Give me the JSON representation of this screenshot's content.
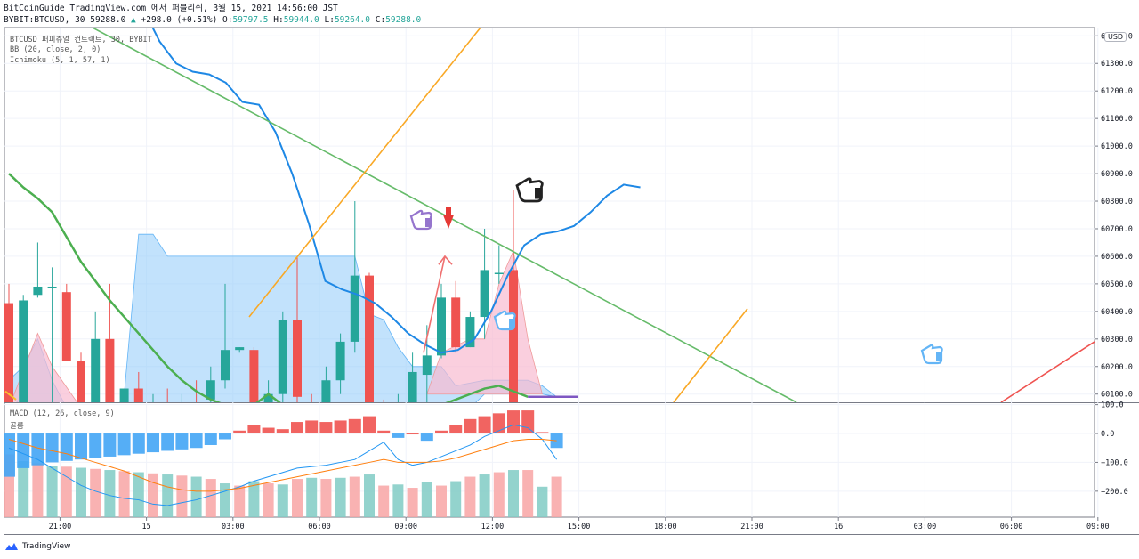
{
  "header": {
    "line1": "BitCoinGuide TradingView.com 에서 퍼블리쉬, 3월 15, 2021 14:56:00 JST",
    "symbol": "BYBIT:BTCUSD, 30",
    "last": "59288.0",
    "change": "+298.0 (+0.51%)",
    "o_label": "O:",
    "o": "59797.5",
    "h_label": "H:",
    "h": "59944.0",
    "l_label": "L:",
    "l": "59264.0",
    "c_label": "C:",
    "c": "59288.0"
  },
  "legend": {
    "main": "BTCUSD 퍼피츄얼 컨트랙트, 30, BYBIT",
    "bb": "BB (20, close, 2, 0)",
    "ichimoku": "Ichimoku (5, 1, 57, 1)",
    "macd": "MACD (12, 26, close, 9)",
    "macd_sub": "골롬"
  },
  "currency": "USD",
  "brand": "TradingView",
  "colors": {
    "up": "#26a69a",
    "down": "#ef5350",
    "cloud": "#90caf9",
    "bb": "#1e88e5",
    "trend_green": "#66bb6a",
    "trend_orange": "#f9a825",
    "macd_line": "#2196f3",
    "signal_line": "#ff7f0e"
  },
  "chart_data": [
    {
      "type": "candlestick",
      "y_ticks": [
        60100,
        60200,
        60300,
        60400,
        60500,
        60600,
        60700,
        60800,
        60900,
        61000,
        61100,
        61200,
        61300,
        61400
      ],
      "y_tick_labels": [
        "60100.0",
        "60200.0",
        "60300.0",
        "60400.0",
        "60500.0",
        "60600.0",
        "60700.0",
        "60800.0",
        "60900.0",
        "61000.0",
        "61100.0",
        "61200.0",
        "61300.0",
        "61400.0"
      ],
      "ylim": [
        60070,
        61430
      ],
      "x_tick_labels": [
        "21:00",
        "15",
        "03:00",
        "06:00",
        "09:00",
        "12:00",
        "15:00",
        "18:00",
        "21:00",
        "16",
        "03:00",
        "06:00",
        "09:00"
      ],
      "x_tick_index": [
        2,
        8,
        14,
        20,
        26,
        32,
        38,
        44,
        50,
        56,
        62,
        68,
        74
      ],
      "candles": [
        {
          "o": 60430,
          "h": 60500,
          "l": 60050,
          "c": 60050
        },
        {
          "o": 60050,
          "h": 60460,
          "l": 60020,
          "c": 60440
        },
        {
          "o": 60460,
          "h": 60650,
          "l": 60450,
          "c": 60490
        },
        {
          "o": 60490,
          "h": 60560,
          "l": 60050,
          "c": 60490
        },
        {
          "o": 60470,
          "h": 60500,
          "l": 60220,
          "c": 60220
        },
        {
          "o": 60220,
          "h": 60250,
          "l": 59950,
          "c": 60000
        },
        {
          "o": 60050,
          "h": 60400,
          "l": 60040,
          "c": 60300
        },
        {
          "o": 60300,
          "h": 60500,
          "l": 60000,
          "c": 60000
        },
        {
          "o": 60000,
          "h": 60120,
          "l": 59900,
          "c": 60120
        },
        {
          "o": 60120,
          "h": 60180,
          "l": 59950,
          "c": 60040
        },
        {
          "o": 60040,
          "h": 60100,
          "l": 59980,
          "c": 60050
        },
        {
          "o": 60050,
          "h": 60120,
          "l": 59980,
          "c": 60010
        },
        {
          "o": 60010,
          "h": 60100,
          "l": 59950,
          "c": 60060
        },
        {
          "o": 60060,
          "h": 60150,
          "l": 59980,
          "c": 60040
        },
        {
          "o": 60080,
          "h": 60200,
          "l": 60050,
          "c": 60150
        },
        {
          "o": 60150,
          "h": 60500,
          "l": 60120,
          "c": 60260
        },
        {
          "o": 60260,
          "h": 60270,
          "l": 60250,
          "c": 60270
        },
        {
          "o": 60260,
          "h": 60270,
          "l": 60000,
          "c": 60010
        },
        {
          "o": 60050,
          "h": 60150,
          "l": 59990,
          "c": 60100
        },
        {
          "o": 60100,
          "h": 60400,
          "l": 60050,
          "c": 60370
        },
        {
          "o": 60370,
          "h": 60600,
          "l": 60050,
          "c": 60090
        },
        {
          "o": 60050,
          "h": 60100,
          "l": 59950,
          "c": 60000
        },
        {
          "o": 60020,
          "h": 60200,
          "l": 60000,
          "c": 60150
        },
        {
          "o": 60150,
          "h": 60320,
          "l": 60100,
          "c": 60290
        },
        {
          "o": 60290,
          "h": 60800,
          "l": 60250,
          "c": 60530
        },
        {
          "o": 60530,
          "h": 60540,
          "l": 60060,
          "c": 60060
        },
        {
          "o": 60050,
          "h": 60080,
          "l": 59950,
          "c": 60000
        },
        {
          "o": 60020,
          "h": 60100,
          "l": 59980,
          "c": 60060
        },
        {
          "o": 60060,
          "h": 60250,
          "l": 60050,
          "c": 60180
        },
        {
          "o": 60170,
          "h": 60350,
          "l": 60050,
          "c": 60240
        },
        {
          "o": 60240,
          "h": 60500,
          "l": 60230,
          "c": 60450
        },
        {
          "o": 60450,
          "h": 60510,
          "l": 60250,
          "c": 60270
        },
        {
          "o": 60270,
          "h": 60400,
          "l": 60270,
          "c": 60380
        },
        {
          "o": 60380,
          "h": 60700,
          "l": 60300,
          "c": 60550
        },
        {
          "o": 60540,
          "h": 60640,
          "l": 60500,
          "c": 60540
        },
        {
          "o": 60550,
          "h": 60840,
          "l": 60030,
          "c": 60050
        }
      ],
      "bb_basis": [
        61600,
        61580,
        61500,
        61380,
        61300,
        61270,
        61260,
        61230,
        61160,
        61150,
        61050,
        60900,
        60720,
        60510,
        60480,
        60460,
        60430,
        60380,
        60320,
        60280,
        60250,
        60260,
        60300,
        60400,
        60530,
        60640,
        60680,
        60690,
        60710,
        60760,
        60820,
        60860,
        60850
      ],
      "cloud": {
        "span_a": [
          60150,
          60200,
          60300,
          60150,
          60050,
          60000,
          59980,
          60000,
          60100,
          60680,
          60680,
          60600,
          60600,
          60600,
          60600,
          60600,
          60600,
          60600,
          60600,
          60600,
          60600,
          60600,
          60600,
          60600,
          60600,
          60390,
          60370,
          60270,
          60200,
          60200,
          60200,
          60130,
          60140,
          60150,
          60150,
          60150,
          60150,
          60130,
          60090
        ],
        "span_b": [
          60100,
          60050,
          60000,
          60000,
          60000,
          60000,
          60000,
          60000,
          60000,
          60000,
          60000,
          60000,
          60000,
          60000,
          60000,
          60000,
          60000,
          60000,
          60000,
          60000,
          60000,
          60000,
          60000,
          60000,
          60000,
          60000,
          60000,
          60000,
          60000,
          60050,
          60050,
          60050,
          60050,
          60100,
          60100,
          60100,
          60100,
          60100,
          60090
        ]
      },
      "ichimoku_green": [
        60900,
        60850,
        60810,
        60760,
        60670,
        60580,
        60510,
        60440,
        60380,
        60320,
        60260,
        60200,
        60150,
        60110,
        60080,
        60060,
        60050,
        60060,
        60100,
        60060,
        60030,
        60020,
        60030,
        60050,
        60060,
        60060,
        60050,
        60050,
        60050,
        60060,
        60060,
        60080,
        60100,
        60120,
        60130,
        60110,
        60090
      ]
    },
    {
      "type": "bar+line",
      "name": "MACD",
      "y_ticks": [
        100,
        0,
        -100,
        -200
      ],
      "y_tick_labels": [
        "100.0",
        "0.0",
        "−100.0",
        "−200.0"
      ],
      "ylim": [
        -290,
        105
      ],
      "histogram": [
        -150,
        -120,
        -110,
        -100,
        -95,
        -90,
        -85,
        -80,
        -75,
        -70,
        -65,
        -60,
        -55,
        -50,
        -40,
        -20,
        10,
        30,
        20,
        15,
        40,
        45,
        40,
        45,
        50,
        60,
        10,
        -15,
        0,
        -25,
        10,
        30,
        50,
        60,
        70,
        80,
        80,
        5,
        -50
      ],
      "macd_line": [
        -50,
        -70,
        -90,
        -120,
        -150,
        -180,
        -200,
        -215,
        -225,
        -230,
        -245,
        -250,
        -240,
        -230,
        -215,
        -200,
        -185,
        -165,
        -150,
        -135,
        -120,
        -115,
        -110,
        -100,
        -90,
        -60,
        -30,
        -90,
        -110,
        -100,
        -80,
        -60,
        -40,
        -10,
        10,
        30,
        20,
        -20,
        -90
      ],
      "signal_line": [
        -20,
        -35,
        -50,
        -60,
        -70,
        -85,
        -100,
        -115,
        -130,
        -150,
        -170,
        -185,
        -195,
        -200,
        -200,
        -195,
        -190,
        -180,
        -170,
        -160,
        -150,
        -140,
        -130,
        -120,
        -110,
        -100,
        -90,
        -100,
        -100,
        -100,
        -95,
        -85,
        -70,
        -55,
        -40,
        -25,
        -20,
        -20,
        -25
      ]
    }
  ]
}
